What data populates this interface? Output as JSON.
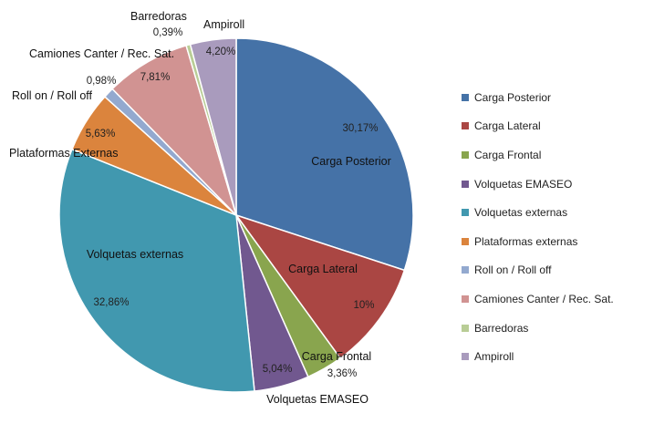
{
  "chart_data": {
    "type": "pie",
    "title": "",
    "slices": [
      {
        "name": "Carga Posterior",
        "value": 30.17,
        "value_label": "30,17%",
        "slice_label": "Carga Posterior",
        "color": "#4572A7"
      },
      {
        "name": "Carga Lateral",
        "value": 10.0,
        "value_label": "10%",
        "slice_label": "Carga Lateral",
        "color": "#AA4643"
      },
      {
        "name": "Carga Frontal",
        "value": 3.36,
        "value_label": "3,36%",
        "slice_label": "Carga Frontal",
        "color": "#89A54E"
      },
      {
        "name": "Volquetas EMASEO",
        "value": 5.04,
        "value_label": "5,04%",
        "slice_label": "Volquetas EMASEO",
        "color": "#71588F"
      },
      {
        "name": "Volquetas externas",
        "value": 32.86,
        "value_label": "32,86%",
        "slice_label": "Volquetas externas",
        "color": "#4198AF"
      },
      {
        "name": "Plataformas externas",
        "value": 5.63,
        "value_label": "5,63%",
        "slice_label": "Plataformas Externas",
        "color": "#DB843D"
      },
      {
        "name": "Roll on / Roll off",
        "value": 0.98,
        "value_label": "0,98%",
        "slice_label": "Roll on / Roll off",
        "color": "#93A9CF"
      },
      {
        "name": "Camiones Canter / Rec. Sat.",
        "value": 7.81,
        "value_label": "7,81%",
        "slice_label": "Camiones Canter / Rec. Sat.",
        "color": "#D19392"
      },
      {
        "name": "Barredoras",
        "value": 0.39,
        "value_label": "0,39%",
        "slice_label": "Barredoras",
        "color": "#B9CD96"
      },
      {
        "name": "Ampiroll",
        "value": 4.2,
        "value_label": "4,20%",
        "slice_label": "Ampiroll",
        "color": "#A99BBD"
      }
    ],
    "legend_position": "right"
  }
}
